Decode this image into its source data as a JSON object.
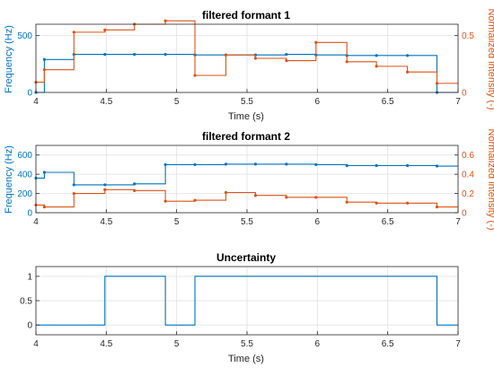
{
  "chart_data": [
    {
      "type": "line",
      "title": "filtered formant 1",
      "xlabel": "Time (s)",
      "ylabel_left": "Frequency (Hz)",
      "ylabel_right": "Normalized intensity (-)",
      "xlim": [
        4,
        7
      ],
      "xticks": [
        "4",
        "4.5",
        "5",
        "5.5",
        "6",
        "6.5",
        "7"
      ],
      "left_ylim": [
        0,
        600
      ],
      "left_yticks": [
        "0",
        "500"
      ],
      "right_ylim": [
        0,
        0.6
      ],
      "right_yticks": [
        "0",
        "0.5"
      ],
      "grid": true,
      "series": [
        {
          "axis": "left",
          "color": "#0072BD",
          "x": [
            4.0,
            4.06,
            4.27,
            4.49,
            4.7,
            4.92,
            5.13,
            5.35,
            5.56,
            5.78,
            5.99,
            6.21,
            6.42,
            6.64,
            6.85
          ],
          "y": [
            0,
            290,
            335,
            335,
            335,
            335,
            330,
            330,
            330,
            335,
            330,
            325,
            325,
            325,
            0
          ]
        },
        {
          "axis": "right",
          "color": "#D95319",
          "x": [
            4.0,
            4.06,
            4.27,
            4.49,
            4.7,
            4.92,
            5.13,
            5.35,
            5.56,
            5.78,
            5.99,
            6.21,
            6.42,
            6.64,
            6.85
          ],
          "y": [
            0.09,
            0.2,
            0.53,
            0.55,
            0.6,
            0.63,
            0.15,
            0.33,
            0.3,
            0.28,
            0.44,
            0.27,
            0.23,
            0.18,
            0.08
          ]
        }
      ]
    },
    {
      "type": "line",
      "title": "filtered formant 2",
      "xlabel": "",
      "ylabel_left": "Frequency (Hz)",
      "ylabel_right": "Normalized intensity (-)",
      "xlim": [
        4,
        7
      ],
      "xticks": [
        "4",
        "4.5",
        "5",
        "5.5",
        "6",
        "6.5",
        "7"
      ],
      "left_ylim": [
        0,
        700
      ],
      "left_yticks": [
        "0",
        "200",
        "400",
        "600"
      ],
      "right_ylim": [
        0,
        0.7
      ],
      "right_yticks": [
        "0",
        "0.2",
        "0.4",
        "0.6"
      ],
      "grid": true,
      "series": [
        {
          "axis": "left",
          "color": "#0072BD",
          "x": [
            4.0,
            4.06,
            4.27,
            4.49,
            4.7,
            4.92,
            5.13,
            5.35,
            5.56,
            5.78,
            5.99,
            6.21,
            6.42,
            6.64,
            6.85
          ],
          "y": [
            360,
            420,
            290,
            290,
            300,
            500,
            500,
            505,
            505,
            505,
            500,
            490,
            490,
            490,
            485
          ]
        },
        {
          "axis": "right",
          "color": "#D95319",
          "x": [
            4.0,
            4.06,
            4.27,
            4.49,
            4.7,
            4.92,
            5.13,
            5.35,
            5.56,
            5.78,
            5.99,
            6.21,
            6.42,
            6.64,
            6.85
          ],
          "y": [
            0.08,
            0.06,
            0.2,
            0.24,
            0.23,
            0.12,
            0.13,
            0.21,
            0.18,
            0.16,
            0.16,
            0.11,
            0.1,
            0.1,
            0.06
          ]
        }
      ]
    },
    {
      "type": "line",
      "title": "Uncertainty",
      "xlabel": "Time (s)",
      "ylabel_left": "",
      "xlim": [
        4,
        7
      ],
      "xticks": [
        "4",
        "4.5",
        "5",
        "5.5",
        "6",
        "6.5",
        "7"
      ],
      "left_ylim": [
        -0.2,
        1.2
      ],
      "left_yticks": [
        "0",
        "0.5",
        "1"
      ],
      "grid": true,
      "series": [
        {
          "axis": "left",
          "color": "#0072BD",
          "x": [
            4.0,
            4.49,
            4.92,
            5.13,
            6.85
          ],
          "y": [
            0,
            1,
            0,
            1,
            0
          ]
        }
      ]
    }
  ]
}
